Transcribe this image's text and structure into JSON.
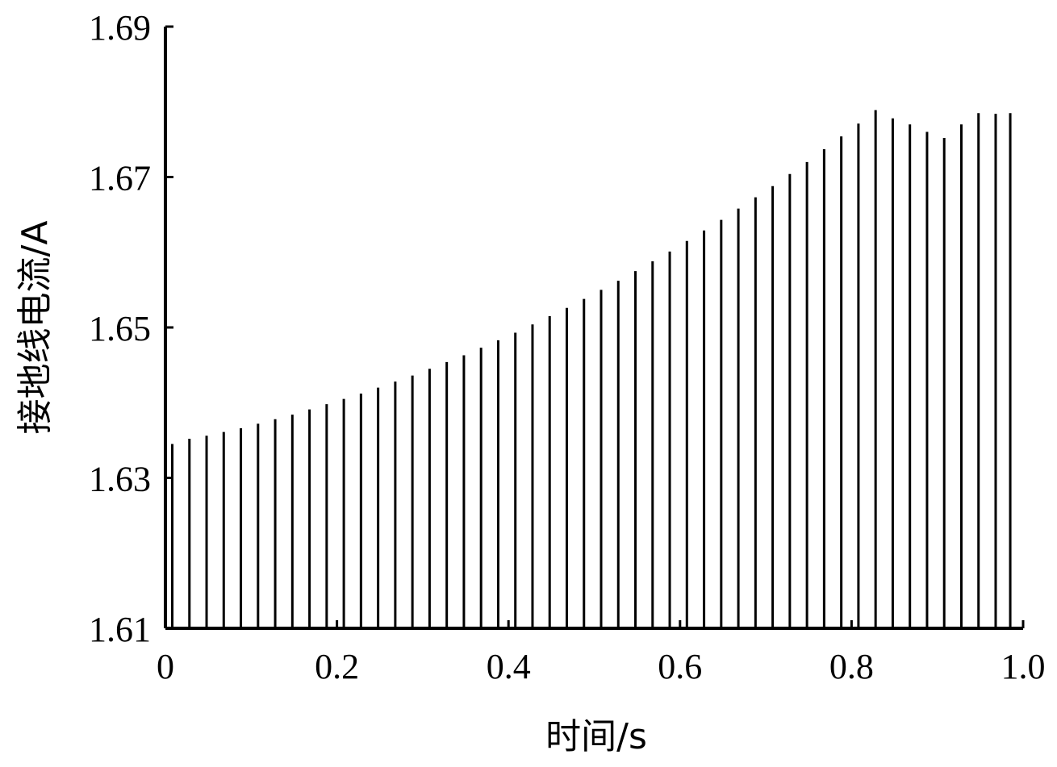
{
  "chart_data": {
    "type": "line",
    "xlabel": "时间/s",
    "ylabel": "接地线电流/A",
    "xlim": [
      0,
      1.0
    ],
    "ylim": [
      1.61,
      1.69
    ],
    "xticks": [
      0,
      0.2,
      0.4,
      0.6,
      0.8,
      1.0
    ],
    "xtick_labels": [
      "0",
      "0.2",
      "0.4",
      "0.6",
      "0.8",
      "1.0"
    ],
    "yticks": [
      1.61,
      1.63,
      1.65,
      1.67,
      1.69
    ],
    "ytick_labels": [
      "1.61",
      "1.63",
      "1.65",
      "1.67",
      "1.69"
    ],
    "grid": false,
    "legend": "none",
    "series": [
      {
        "color": "#000000",
        "waveform": "periodic spikes from 1.61 rising to an increasing envelope",
        "period": 0.02,
        "peaks": {
          "x": [
            0.008,
            0.028,
            0.048,
            0.068,
            0.088,
            0.108,
            0.128,
            0.148,
            0.168,
            0.188,
            0.208,
            0.228,
            0.248,
            0.268,
            0.288,
            0.308,
            0.328,
            0.348,
            0.368,
            0.388,
            0.408,
            0.428,
            0.448,
            0.468,
            0.488,
            0.508,
            0.528,
            0.548,
            0.568,
            0.588,
            0.608,
            0.628,
            0.648,
            0.668,
            0.688,
            0.708,
            0.728,
            0.748,
            0.768,
            0.788,
            0.808,
            0.828,
            0.848,
            0.868,
            0.888,
            0.908,
            0.928,
            0.948,
            0.968,
            0.985
          ],
          "y": [
            1.6345,
            1.6352,
            1.6356,
            1.6361,
            1.6366,
            1.6372,
            1.6378,
            1.6384,
            1.6391,
            1.6398,
            1.6405,
            1.6412,
            1.642,
            1.6428,
            1.6436,
            1.6445,
            1.6454,
            1.6463,
            1.6473,
            1.6483,
            1.6493,
            1.6504,
            1.6515,
            1.6526,
            1.6538,
            1.655,
            1.6562,
            1.6575,
            1.6588,
            1.6601,
            1.6615,
            1.6629,
            1.6643,
            1.6658,
            1.6673,
            1.6688,
            1.6704,
            1.672,
            1.6737,
            1.6754,
            1.6771,
            1.6789,
            1.6778,
            1.677,
            1.676,
            1.6752,
            1.677,
            1.6785,
            1.6784,
            1.6785
          ]
        }
      }
    ]
  }
}
